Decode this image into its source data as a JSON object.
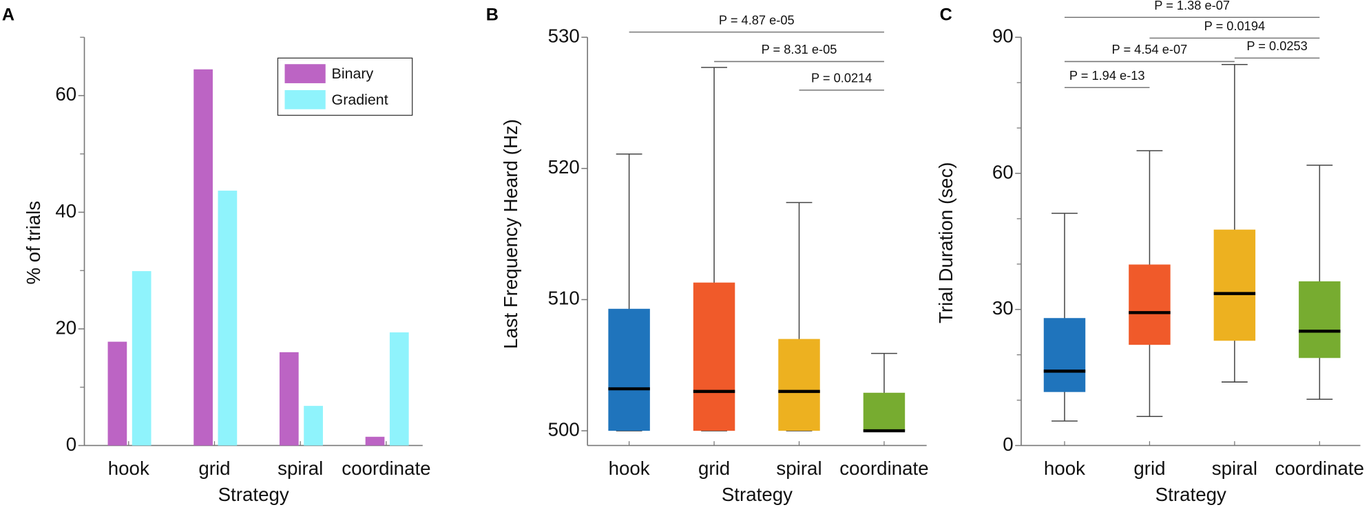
{
  "chart_data": [
    {
      "panel": "A",
      "type": "bar",
      "xlabel": "Strategy",
      "ylabel": "% of trials",
      "categories": [
        "hook",
        "grid",
        "spiral",
        "coordinate"
      ],
      "ylim": [
        0,
        70
      ],
      "yticks": [
        0,
        20,
        40,
        60
      ],
      "yminor_ticks": [
        10,
        30,
        50,
        70
      ],
      "grid": false,
      "legend_position": "top-right",
      "series": [
        {
          "name": "Binary",
          "color": "#BC64C4",
          "values": [
            17.8,
            64.5,
            16.0,
            1.5
          ]
        },
        {
          "name": "Gradient",
          "color": "#8FF3FC",
          "values": [
            29.9,
            43.7,
            6.8,
            19.4
          ]
        }
      ]
    },
    {
      "panel": "B",
      "type": "box",
      "xlabel": "Strategy",
      "ylabel": "Last Frequency Heard (Hz)",
      "categories": [
        "hook",
        "grid",
        "spiral",
        "coordinate"
      ],
      "ylim": [
        499,
        530
      ],
      "yticks": [
        500,
        510,
        520,
        530
      ],
      "grid": false,
      "colors": [
        "#1F74BC",
        "#F05A2A",
        "#EDB120",
        "#77AC30"
      ],
      "boxes": [
        {
          "whisker_low": 500,
          "q1": 500,
          "median": 503.2,
          "q3": 509.3,
          "whisker_high": 521.1
        },
        {
          "whisker_low": 500,
          "q1": 500,
          "median": 503.0,
          "q3": 511.3,
          "whisker_high": 527.7
        },
        {
          "whisker_low": 500,
          "q1": 500,
          "median": 503.0,
          "q3": 507.0,
          "whisker_high": 517.4
        },
        {
          "whisker_low": 500,
          "q1": 500,
          "median": 500.0,
          "q3": 502.9,
          "whisker_high": 505.9
        }
      ],
      "comparisons": [
        {
          "from": "hook",
          "to": "coordinate",
          "label": "P = 4.87 e-05"
        },
        {
          "from": "grid",
          "to": "coordinate",
          "label": "P = 8.31 e-05"
        },
        {
          "from": "spiral",
          "to": "coordinate",
          "label": "P = 0.0214"
        }
      ]
    },
    {
      "panel": "C",
      "type": "box",
      "xlabel": "Strategy",
      "ylabel": "Trial Duration (sec)",
      "categories": [
        "hook",
        "grid",
        "spiral",
        "coordinate"
      ],
      "ylim": [
        0,
        90
      ],
      "yticks": [
        0,
        30,
        60,
        90
      ],
      "yminor_ticks": [
        10,
        20,
        40,
        50,
        70,
        80
      ],
      "grid": false,
      "colors": [
        "#1F74BC",
        "#F05A2A",
        "#EDB120",
        "#77AC30"
      ],
      "boxes": [
        {
          "whisker_low": 5.4,
          "q1": 11.8,
          "median": 16.4,
          "q3": 28.1,
          "whisker_high": 51.2
        },
        {
          "whisker_low": 6.4,
          "q1": 22.2,
          "median": 29.3,
          "q3": 39.9,
          "whisker_high": 65.0
        },
        {
          "whisker_low": 14.0,
          "q1": 23.1,
          "median": 33.5,
          "q3": 47.6,
          "whisker_high": 84.0
        },
        {
          "whisker_low": 10.2,
          "q1": 19.3,
          "median": 25.2,
          "q3": 36.2,
          "whisker_high": 61.8
        }
      ],
      "comparisons": [
        {
          "from": "hook",
          "to": "coordinate",
          "label": "P = 1.38 e-07"
        },
        {
          "from": "grid",
          "to": "coordinate",
          "label": "P = 0.0194"
        },
        {
          "from": "hook",
          "to": "spiral",
          "label": "P = 4.54 e-07"
        },
        {
          "from": "spiral",
          "to": "coordinate",
          "label": "P = 0.0253"
        },
        {
          "from": "hook",
          "to": "grid",
          "label": "P = 1.94 e-13"
        }
      ]
    }
  ]
}
